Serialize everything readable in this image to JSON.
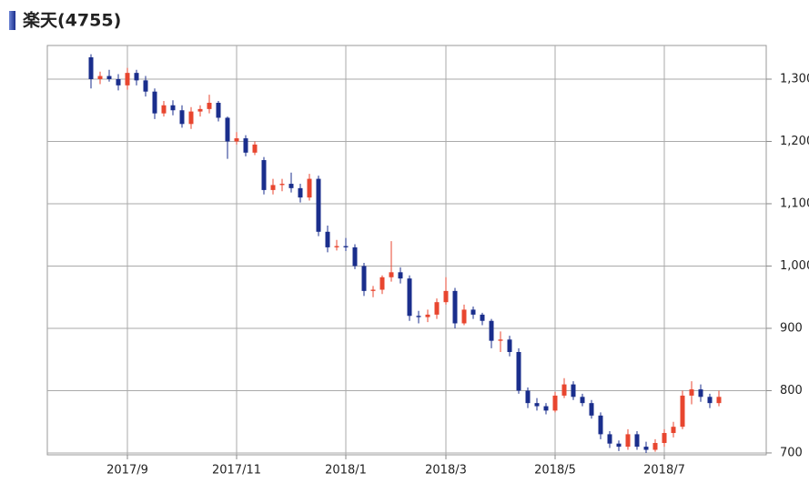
{
  "chart_data": {
    "type": "candlestick",
    "title": "楽天(4755)",
    "categories": [
      null,
      null,
      null,
      null,
      "2017/9",
      null,
      null,
      null,
      null,
      null,
      null,
      null,
      null,
      null,
      null,
      null,
      "2017/11",
      null,
      null,
      null,
      null,
      null,
      null,
      null,
      null,
      null,
      null,
      null,
      "2018/1",
      null,
      null,
      null,
      null,
      null,
      null,
      null,
      null,
      null,
      null,
      "2018/3",
      null,
      null,
      null,
      null,
      null,
      null,
      null,
      null,
      null,
      null,
      null,
      "2018/5",
      null,
      null,
      null,
      null,
      null,
      null,
      null,
      null,
      null,
      null,
      null,
      "2018/7",
      null,
      null,
      null,
      null,
      null,
      null
    ],
    "open": [
      1335,
      1300,
      1305,
      1300,
      1290,
      1310,
      1298,
      1280,
      1245,
      1258,
      1250,
      1228,
      1248,
      1252,
      1262,
      1238,
      1200,
      1205,
      1182,
      1170,
      1122,
      1130,
      1132,
      1125,
      1110,
      1140,
      1055,
      1030,
      1032,
      1030,
      1000,
      960,
      962,
      982,
      990,
      980,
      920,
      918,
      922,
      942,
      960,
      908,
      930,
      922,
      912,
      880,
      882,
      862,
      800,
      780,
      775,
      768,
      792,
      810,
      790,
      780,
      760,
      730,
      715,
      710,
      730,
      710,
      705,
      716,
      732,
      742,
      792,
      802,
      790,
      780
    ],
    "high": [
      1340,
      1312,
      1315,
      1308,
      1318,
      1315,
      1305,
      1285,
      1265,
      1266,
      1258,
      1255,
      1258,
      1275,
      1265,
      1240,
      1215,
      1210,
      1200,
      1175,
      1140,
      1140,
      1150,
      1132,
      1148,
      1145,
      1065,
      1042,
      1045,
      1035,
      1005,
      968,
      985,
      1040,
      998,
      985,
      928,
      930,
      948,
      982,
      965,
      938,
      935,
      925,
      915,
      895,
      888,
      868,
      805,
      788,
      780,
      798,
      820,
      815,
      795,
      785,
      765,
      735,
      720,
      738,
      735,
      718,
      722,
      738,
      750,
      800,
      815,
      810,
      795,
      800
    ],
    "low": [
      1285,
      1292,
      1296,
      1282,
      1283,
      1290,
      1272,
      1236,
      1240,
      1242,
      1222,
      1220,
      1240,
      1245,
      1232,
      1172,
      1195,
      1176,
      1178,
      1115,
      1115,
      1120,
      1118,
      1102,
      1105,
      1048,
      1022,
      1025,
      1024,
      995,
      952,
      950,
      955,
      975,
      972,
      912,
      908,
      910,
      915,
      938,
      900,
      905,
      915,
      905,
      868,
      862,
      855,
      795,
      772,
      768,
      762,
      765,
      788,
      785,
      775,
      755,
      722,
      708,
      703,
      705,
      705,
      700,
      702,
      710,
      725,
      738,
      778,
      782,
      772,
      775
    ],
    "close": [
      1300,
      1305,
      1300,
      1290,
      1310,
      1298,
      1280,
      1245,
      1258,
      1250,
      1228,
      1248,
      1252,
      1262,
      1238,
      1200,
      1205,
      1182,
      1195,
      1122,
      1130,
      1132,
      1125,
      1110,
      1140,
      1055,
      1030,
      1032,
      1030,
      1000,
      960,
      962,
      982,
      990,
      980,
      920,
      918,
      922,
      942,
      960,
      908,
      930,
      922,
      912,
      880,
      882,
      862,
      800,
      780,
      775,
      768,
      792,
      810,
      790,
      780,
      760,
      730,
      715,
      710,
      730,
      710,
      705,
      716,
      732,
      742,
      792,
      802,
      790,
      780,
      790
    ],
    "up_color": "#e8462f",
    "down_color": "#1a2e8c",
    "ylim": [
      697,
      1354
    ],
    "yticks": [
      700,
      800,
      900,
      {
        "value": 1000,
        "label": "1,000"
      },
      {
        "value": 1100,
        "label": "1,100"
      },
      {
        "value": 1200,
        "label": "1,200"
      },
      {
        "value": 1300,
        "label": "1,300"
      }
    ],
    "grid": true
  }
}
